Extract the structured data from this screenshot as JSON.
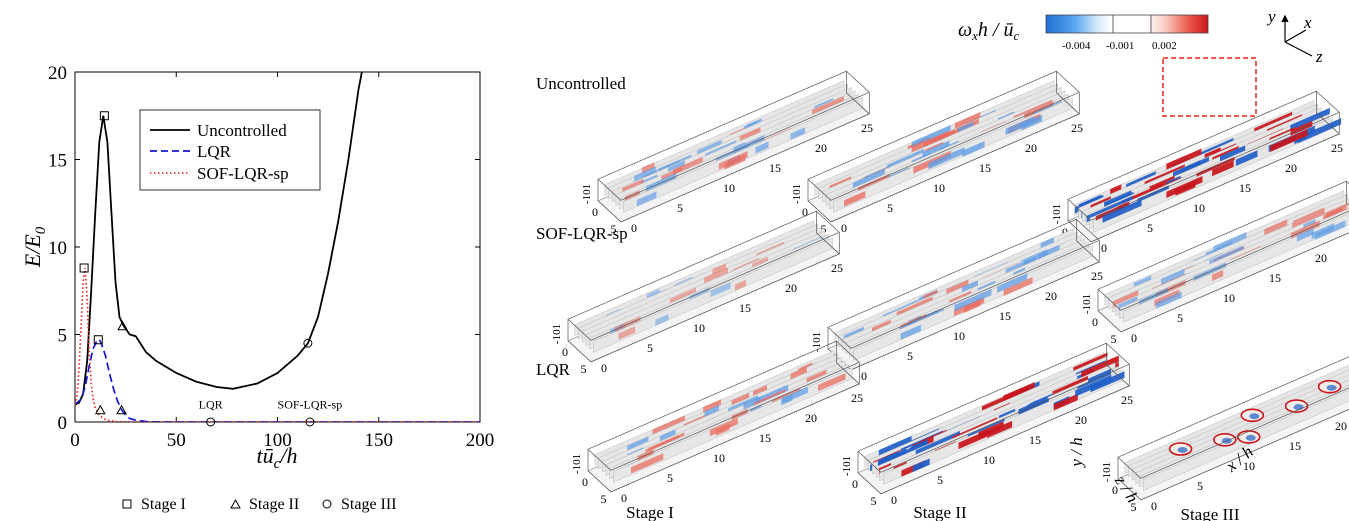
{
  "chart_data": {
    "type": "line",
    "xlabel": "tū_c/h",
    "ylabel": "E/E_0",
    "xlim": [
      0,
      200
    ],
    "ylim": [
      0,
      20
    ],
    "xticks": [
      "0",
      "50",
      "100",
      "150",
      "200"
    ],
    "yticks": [
      "0",
      "5",
      "10",
      "15",
      "20"
    ],
    "legend_position": "top-right",
    "series": [
      {
        "name": "Uncontrolled",
        "color": "#000000",
        "style": "solid",
        "x": [
          0,
          2,
          4,
          6,
          8,
          10,
          12,
          14,
          16,
          18,
          20,
          22,
          24,
          27,
          30,
          35,
          40,
          50,
          60,
          70,
          78,
          90,
          100,
          110,
          115,
          120,
          125,
          130,
          135,
          140,
          145
        ],
        "y": [
          1.0,
          1.1,
          1.6,
          3.5,
          7.5,
          12.0,
          16.0,
          17.5,
          16.0,
          12.0,
          8.0,
          6.0,
          5.5,
          5.0,
          4.9,
          4.0,
          3.5,
          2.8,
          2.3,
          2.0,
          1.9,
          2.2,
          2.8,
          3.8,
          4.5,
          6.0,
          8.5,
          11.5,
          15.0,
          19.0,
          22.0
        ]
      },
      {
        "name": "LQR",
        "color": "#1515d0",
        "style": "dashed",
        "x": [
          0,
          3,
          5,
          7,
          9,
          11,
          12,
          13,
          15,
          17,
          19,
          21,
          23,
          25,
          27,
          30,
          35,
          40,
          50,
          60,
          100,
          150,
          200
        ],
        "y": [
          1.0,
          1.3,
          2.0,
          3.2,
          4.2,
          4.7,
          4.7,
          4.5,
          3.8,
          2.8,
          1.9,
          1.2,
          0.7,
          0.4,
          0.2,
          0.1,
          0.03,
          0.01,
          0.0,
          0.0,
          0.0,
          0.0,
          0.0
        ]
      },
      {
        "name": "SOF-LQR-sp",
        "color": "#e8231b",
        "style": "dotted",
        "x": [
          0,
          1,
          2,
          3,
          4,
          5,
          6,
          7,
          8,
          9,
          10,
          12,
          14,
          16,
          20,
          30,
          50,
          100,
          150,
          200
        ],
        "y": [
          1.0,
          1.5,
          3.0,
          5.5,
          8.0,
          8.8,
          7.0,
          4.0,
          2.2,
          1.3,
          0.8,
          0.4,
          0.2,
          0.1,
          0.02,
          0.0,
          0.0,
          0.0,
          0.0,
          0.0
        ]
      }
    ],
    "markers": [
      {
        "stage": "Stage I",
        "symbol": "square",
        "series": "Uncontrolled",
        "x": 14.5,
        "y": 17.5
      },
      {
        "stage": "Stage I",
        "symbol": "square",
        "series": "LQR",
        "x": 11.5,
        "y": 4.7
      },
      {
        "stage": "Stage I",
        "symbol": "square",
        "series": "SOF-LQR-sp",
        "x": 4.5,
        "y": 8.8
      },
      {
        "stage": "Stage II",
        "symbol": "triangle",
        "series": "Uncontrolled",
        "x": 23.5,
        "y": 5.5
      },
      {
        "stage": "Stage II",
        "symbol": "triangle",
        "series": "LQR",
        "x": 23.0,
        "y": 0.7
      },
      {
        "stage": "Stage II",
        "symbol": "triangle",
        "series": "SOF-LQR-sp",
        "x": 12.5,
        "y": 0.7
      },
      {
        "stage": "Stage III",
        "symbol": "circle",
        "series": "Uncontrolled",
        "x": 115,
        "y": 4.5
      },
      {
        "stage": "Stage III",
        "symbol": "circle",
        "series": "LQR",
        "x": 67,
        "y": 0.0
      },
      {
        "stage": "Stage III",
        "symbol": "circle",
        "series": "SOF-LQR-sp",
        "x": 116,
        "y": 0.0
      }
    ],
    "annotations": [
      {
        "text": "LQR",
        "x": 67,
        "y": 0.5
      },
      {
        "text": "SOF-LQR-sp",
        "x": 116,
        "y": 0.5
      }
    ]
  },
  "stage_legend": [
    {
      "symbol": "square",
      "label": "Stage I"
    },
    {
      "symbol": "triangle",
      "label": "Stage II"
    },
    {
      "symbol": "circle",
      "label": "Stage III"
    }
  ],
  "panels": {
    "colorbar": {
      "label": "ω_x h / ū_c",
      "ticks": [
        "-0.004",
        "-0.001",
        "0.002"
      ]
    },
    "axes_triad": {
      "y": "y",
      "x": "x",
      "z": "z"
    },
    "row_labels": [
      "Uncontrolled",
      "SOF-LQR-sp",
      "LQR"
    ],
    "stage_labels": [
      "Stage I",
      "Stage II",
      "Stage III"
    ],
    "x_axis_ticks": [
      "0",
      "5",
      "10",
      "15",
      "20",
      "25"
    ],
    "z_axis_ticks": [
      "0",
      "5"
    ],
    "y_axis_ticks": [
      "-1",
      "0",
      "1"
    ],
    "axis_labels": {
      "x": "x / h",
      "y": "y / h",
      "z": "z / h"
    }
  }
}
